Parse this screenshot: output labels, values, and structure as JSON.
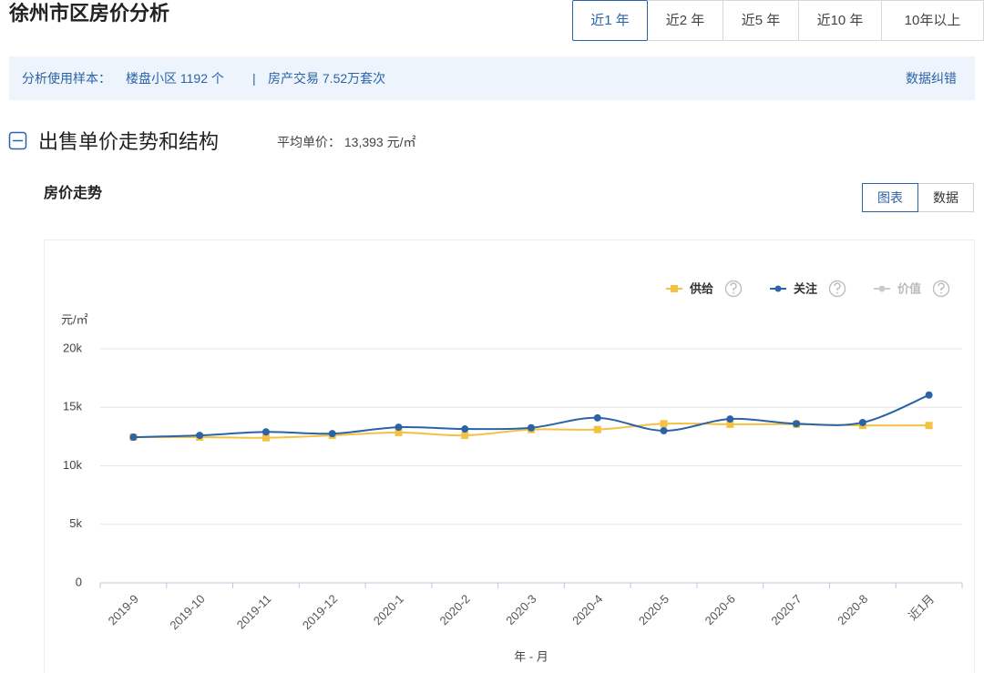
{
  "header": {
    "title": "徐州市区房价分析",
    "tabs": [
      "近1 年",
      "近2 年",
      "近5 年",
      "近10 年",
      "10年以上"
    ]
  },
  "info_bar": {
    "label": "分析使用样本：",
    "sample": "楼盘小区 1192 个",
    "separator": "|",
    "trades": "房产交易 7.52万套次",
    "action": "数据纠错"
  },
  "section": {
    "title": "出售单价走势和结构",
    "avg_label": "平均单价：",
    "avg_value": "13,393 元/㎡"
  },
  "subsection": {
    "title": "房价走势",
    "toggle": [
      "图表",
      "数据"
    ]
  },
  "chart_data": {
    "type": "line",
    "y_unit": "元/㎡",
    "x_label": "年 - 月",
    "categories": [
      "2019-9",
      "2019-10",
      "2019-11",
      "2019-12",
      "2020-1",
      "2020-2",
      "2020-3",
      "2020-4",
      "2020-5",
      "2020-6",
      "2020-7",
      "2020-8",
      "近1月"
    ],
    "series": [
      {
        "name": "供给",
        "color": "#f5c142",
        "marker": "square",
        "values": [
          12450,
          12450,
          12400,
          12600,
          12850,
          12600,
          13100,
          13100,
          13600,
          13550,
          13550,
          13450,
          13450
        ]
      },
      {
        "name": "关注",
        "color": "#2a63a8",
        "marker": "circle",
        "values": [
          12450,
          12600,
          12900,
          12750,
          13300,
          13150,
          13250,
          14100,
          13000,
          14000,
          13600,
          13700,
          16050
        ]
      },
      {
        "name": "价值",
        "color": "#cccccc",
        "marker": "circle",
        "values": [
          null,
          null,
          null,
          null,
          null,
          null,
          null,
          null,
          null,
          null,
          null,
          null,
          null
        ]
      }
    ],
    "ylim": [
      0,
      20000
    ],
    "yticks": [
      0,
      {
        "value": 5000,
        "label": "5k"
      },
      {
        "value": 10000,
        "label": "10k"
      },
      {
        "value": 15000,
        "label": "15k"
      },
      {
        "value": 20000,
        "label": "20k"
      }
    ],
    "grid": true,
    "legend": "top-right"
  }
}
